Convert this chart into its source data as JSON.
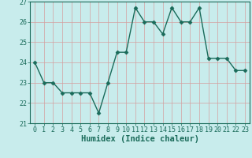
{
  "x": [
    0,
    1,
    2,
    3,
    4,
    5,
    6,
    7,
    8,
    9,
    10,
    11,
    12,
    13,
    14,
    15,
    16,
    17,
    18,
    19,
    20,
    21,
    22,
    23
  ],
  "y": [
    24,
    23,
    23,
    22.5,
    22.5,
    22.5,
    22.5,
    21.5,
    23,
    24.5,
    24.5,
    26.7,
    26,
    26,
    25.4,
    26.7,
    26,
    26,
    26.7,
    24.2,
    24.2,
    24.2,
    23.6,
    23.6
  ],
  "line_color": "#1a6b5a",
  "marker": "D",
  "marker_size": 2.5,
  "bg_color": "#c8ecec",
  "grid_color": "#b0d8d8",
  "xlabel": "Humidex (Indice chaleur)",
  "xlabel_fontsize": 7.5,
  "ylim": [
    21,
    27
  ],
  "xlim": [
    -0.5,
    23.5
  ],
  "yticks": [
    21,
    22,
    23,
    24,
    25,
    26,
    27
  ],
  "xticks": [
    0,
    1,
    2,
    3,
    4,
    5,
    6,
    7,
    8,
    9,
    10,
    11,
    12,
    13,
    14,
    15,
    16,
    17,
    18,
    19,
    20,
    21,
    22,
    23
  ],
  "tick_fontsize": 6,
  "line_width": 1.0
}
